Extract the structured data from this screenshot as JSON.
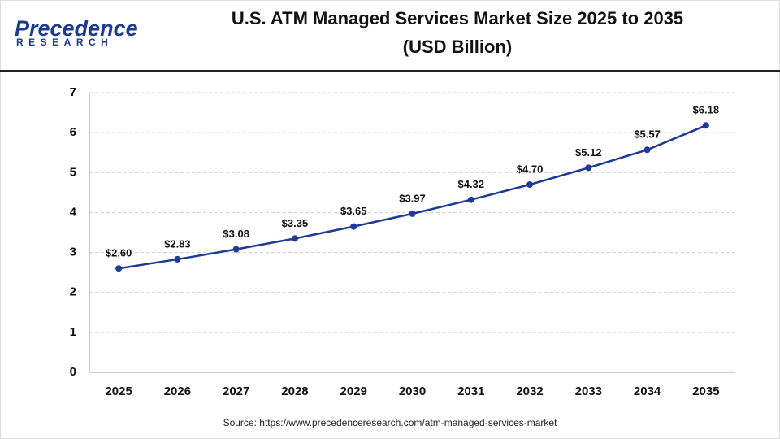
{
  "logo": {
    "name": "Precedence",
    "tagline": "RESEARCH"
  },
  "chart_data": {
    "type": "line",
    "title": "U.S. ATM Managed Services Market Size 2025 to 2035",
    "subtitle": "(USD Billion)",
    "categories": [
      "2025",
      "2026",
      "2027",
      "2028",
      "2029",
      "2030",
      "2031",
      "2032",
      "2033",
      "2034",
      "2035"
    ],
    "values": [
      2.6,
      2.83,
      3.08,
      3.35,
      3.65,
      3.97,
      4.32,
      4.7,
      5.12,
      5.57,
      6.18
    ],
    "value_labels": [
      "$2.60",
      "$2.83",
      "$3.08",
      "$3.35",
      "$3.65",
      "$3.97",
      "$4.32",
      "$4.70",
      "$5.12",
      "$5.57",
      "$6.18"
    ],
    "color": "#1f3a93",
    "ylim": [
      0,
      7
    ],
    "yticks": [
      0,
      1,
      2,
      3,
      4,
      5,
      6,
      7
    ],
    "grid": true,
    "source": "Source: https://www.precedenceresearch.com/atm-managed-services-market"
  }
}
